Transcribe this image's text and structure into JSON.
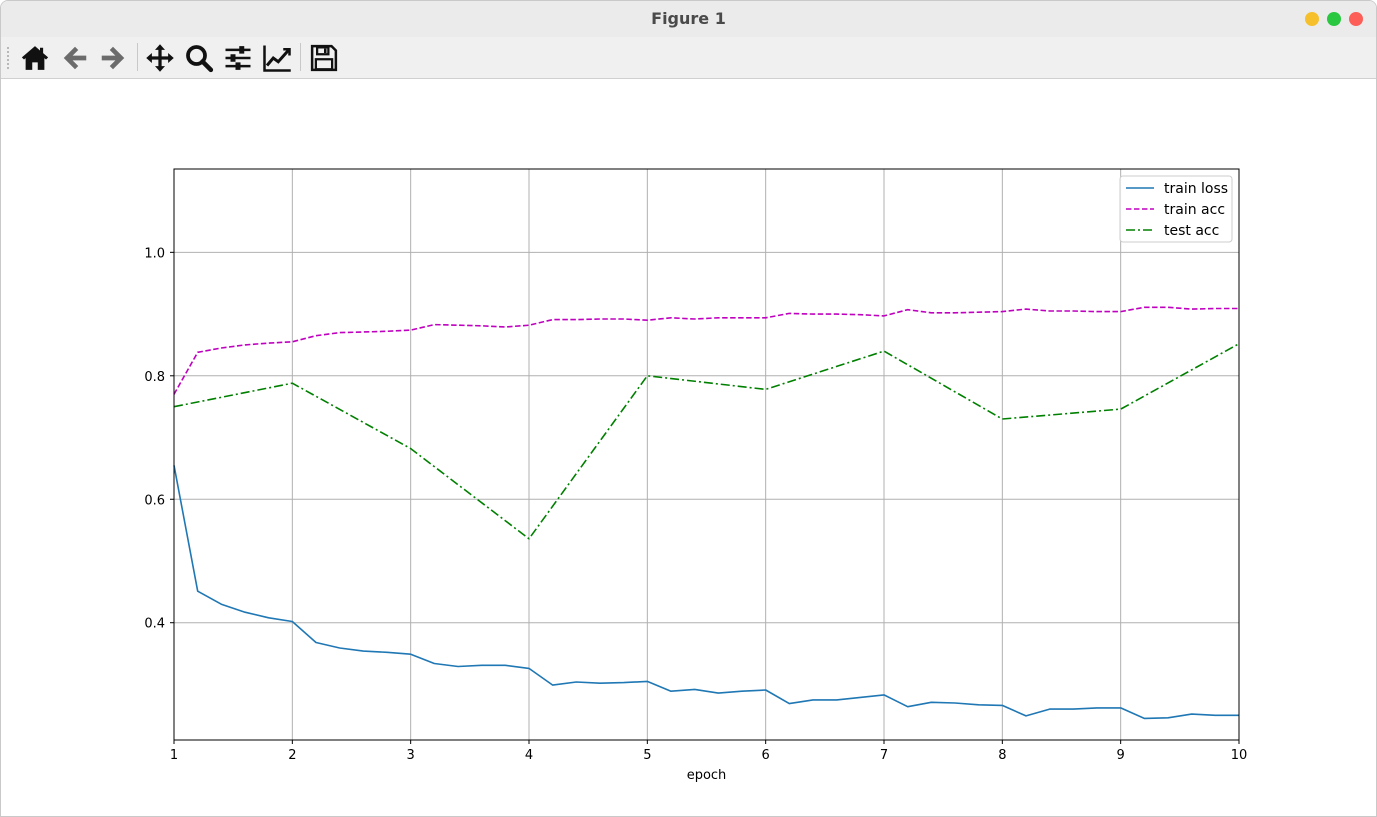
{
  "window": {
    "title": "Figure 1",
    "buttons": [
      "minimize-button",
      "maximize-button",
      "close-button"
    ]
  },
  "toolbar": {
    "items": [
      {
        "name": "home-button",
        "icon": "home-icon"
      },
      {
        "name": "back-button",
        "icon": "arrow-left-icon"
      },
      {
        "name": "forward-button",
        "icon": "arrow-right-icon"
      },
      {
        "name": "pan-button",
        "icon": "move-icon"
      },
      {
        "name": "zoom-button",
        "icon": "magnifier-icon"
      },
      {
        "name": "subplots-button",
        "icon": "sliders-icon"
      },
      {
        "name": "axes-button",
        "icon": "line-chart-icon"
      },
      {
        "name": "save-button",
        "icon": "floppy-disk-icon"
      }
    ]
  },
  "chart_data": {
    "type": "line",
    "title": "",
    "xlabel": "epoch",
    "ylabel": "",
    "xlim": [
      1,
      10
    ],
    "ylim": [
      0.21,
      1.135
    ],
    "xticks": [
      1,
      2,
      3,
      4,
      5,
      6,
      7,
      8,
      9,
      10
    ],
    "yticks": [
      0.4,
      0.6,
      0.8,
      1.0
    ],
    "ytick_labels": [
      "0.4",
      "0.6",
      "0.8",
      "1.0"
    ],
    "grid": true,
    "legend_position": "top-right",
    "series": [
      {
        "name": "train loss",
        "color": "#1f77b4",
        "style": "solid",
        "x": [
          1.0,
          1.2,
          1.4,
          1.6,
          1.8,
          2.0,
          2.2,
          2.4,
          2.6,
          2.8,
          3.0,
          3.2,
          3.4,
          3.6,
          3.8,
          4.0,
          4.2,
          4.4,
          4.6,
          4.8,
          5.0,
          5.2,
          5.4,
          5.6,
          5.8,
          6.0,
          6.2,
          6.4,
          6.6,
          6.8,
          7.0,
          7.2,
          7.4,
          7.6,
          7.8,
          8.0,
          8.2,
          8.4,
          8.6,
          8.8,
          9.0,
          9.2,
          9.4,
          9.6,
          9.8,
          10.0
        ],
        "y": [
          0.655,
          0.451,
          0.43,
          0.417,
          0.408,
          0.402,
          0.368,
          0.359,
          0.354,
          0.352,
          0.349,
          0.334,
          0.329,
          0.331,
          0.331,
          0.326,
          0.299,
          0.304,
          0.302,
          0.303,
          0.305,
          0.289,
          0.292,
          0.286,
          0.289,
          0.291,
          0.269,
          0.275,
          0.275,
          0.279,
          0.283,
          0.264,
          0.271,
          0.27,
          0.267,
          0.266,
          0.249,
          0.26,
          0.26,
          0.262,
          0.262,
          0.245,
          0.246,
          0.252,
          0.25,
          0.25
        ]
      },
      {
        "name": "train acc",
        "color": "#bf00bf",
        "style": "dashed",
        "x": [
          1.0,
          1.2,
          1.4,
          1.6,
          1.8,
          2.0,
          2.2,
          2.4,
          2.6,
          2.8,
          3.0,
          3.2,
          3.4,
          3.6,
          3.8,
          4.0,
          4.2,
          4.4,
          4.6,
          4.8,
          5.0,
          5.2,
          5.4,
          5.6,
          5.8,
          6.0,
          6.2,
          6.4,
          6.6,
          6.8,
          7.0,
          7.2,
          7.4,
          7.6,
          7.8,
          8.0,
          8.2,
          8.4,
          8.6,
          8.8,
          9.0,
          9.2,
          9.4,
          9.6,
          9.8,
          10.0
        ],
        "y": [
          0.77,
          0.838,
          0.845,
          0.85,
          0.853,
          0.855,
          0.865,
          0.87,
          0.871,
          0.872,
          0.874,
          0.883,
          0.882,
          0.881,
          0.879,
          0.882,
          0.891,
          0.891,
          0.892,
          0.892,
          0.89,
          0.894,
          0.892,
          0.894,
          0.894,
          0.894,
          0.901,
          0.9,
          0.9,
          0.899,
          0.897,
          0.907,
          0.902,
          0.902,
          0.903,
          0.904,
          0.908,
          0.905,
          0.905,
          0.904,
          0.904,
          0.911,
          0.911,
          0.908,
          0.909,
          0.909
        ]
      },
      {
        "name": "test acc",
        "color": "#008000",
        "style": "dashdot",
        "x": [
          1,
          2,
          3,
          4,
          5,
          6,
          7,
          8,
          9,
          10
        ],
        "y": [
          0.75,
          0.788,
          0.682,
          0.536,
          0.8,
          0.778,
          0.84,
          0.73,
          0.746,
          0.852
        ]
      }
    ]
  }
}
